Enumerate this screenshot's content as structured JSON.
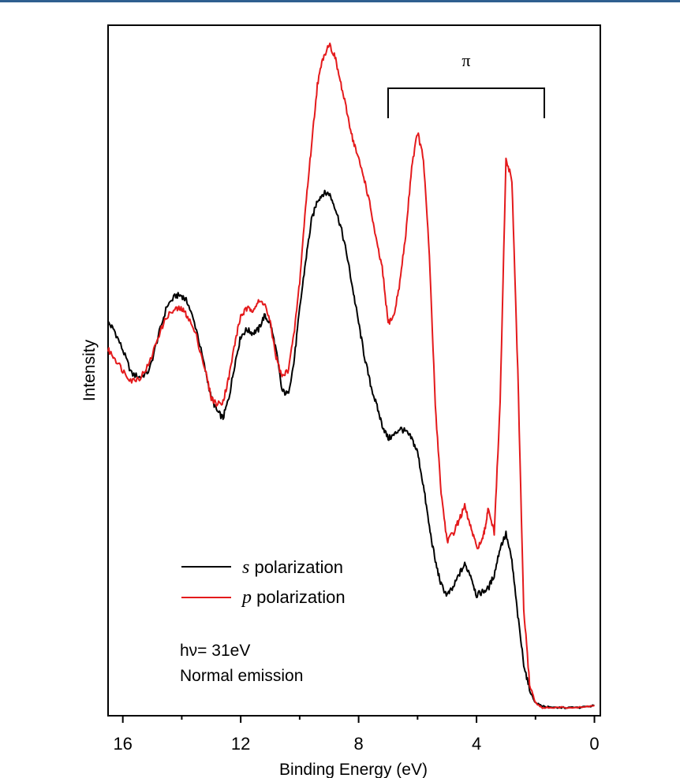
{
  "chart_data": {
    "type": "line",
    "title": "",
    "xlabel": "Binding Energy (eV)",
    "ylabel": "Intensity",
    "xlim": [
      16.5,
      -0.2
    ],
    "ylim": [
      0,
      100
    ],
    "x_reversed": true,
    "x_ticks": [
      16,
      12,
      8,
      4,
      0
    ],
    "x_tick_labels": [
      "16",
      "12",
      "8",
      "4",
      "0"
    ],
    "y_ticks_labeled": false,
    "grid": false,
    "legend_placement": "bottom-left",
    "series": [
      {
        "name_italic": "s",
        "name_rest": " polarization",
        "color": "#000000",
        "x": [
          16.5,
          16.3,
          16.0,
          15.7,
          15.4,
          15.1,
          14.8,
          14.5,
          14.2,
          14.0,
          13.8,
          13.5,
          13.2,
          13.0,
          12.8,
          12.6,
          12.4,
          12.2,
          12.0,
          11.8,
          11.6,
          11.4,
          11.2,
          11.0,
          10.8,
          10.6,
          10.4,
          10.2,
          10.0,
          9.8,
          9.6,
          9.4,
          9.2,
          9.0,
          8.8,
          8.6,
          8.4,
          8.2,
          8.0,
          7.8,
          7.6,
          7.4,
          7.2,
          7.0,
          6.8,
          6.6,
          6.4,
          6.2,
          6.0,
          5.8,
          5.6,
          5.4,
          5.2,
          5.0,
          4.8,
          4.6,
          4.4,
          4.2,
          4.0,
          3.8,
          3.6,
          3.4,
          3.2,
          3.0,
          2.8,
          2.6,
          2.4,
          2.2,
          2.0,
          1.8,
          1.5,
          1.0,
          0.5,
          0.0
        ],
        "y": [
          57,
          56,
          53,
          49.5,
          49,
          50,
          55,
          59.5,
          61,
          61,
          60,
          56,
          50,
          46,
          44,
          43,
          46,
          51,
          55,
          56,
          55.5,
          56,
          58,
          57,
          53,
          47,
          46.5,
          51,
          59,
          66,
          72,
          75,
          76,
          76,
          74,
          71,
          67,
          62,
          57,
          52,
          48,
          45,
          42,
          40,
          40.5,
          41.5,
          41,
          40,
          38,
          33,
          27,
          22,
          18.5,
          17,
          18,
          20,
          21.5,
          20,
          17,
          17.5,
          18,
          20,
          24,
          26,
          22,
          14,
          7,
          3,
          1.2,
          0.8,
          0.5,
          0.5,
          0.5,
          0.8
        ]
      },
      {
        "name_italic": "p",
        "name_rest": " polarization",
        "color": "#e41a1c",
        "x": [
          16.5,
          16.3,
          16.0,
          15.7,
          15.4,
          15.1,
          14.8,
          14.5,
          14.2,
          14.0,
          13.8,
          13.5,
          13.2,
          13.0,
          12.8,
          12.6,
          12.4,
          12.2,
          12.0,
          11.8,
          11.6,
          11.4,
          11.2,
          11.0,
          10.8,
          10.6,
          10.4,
          10.2,
          10.0,
          9.8,
          9.6,
          9.4,
          9.2,
          9.0,
          8.8,
          8.6,
          8.4,
          8.2,
          8.0,
          7.8,
          7.6,
          7.4,
          7.2,
          7.0,
          6.8,
          6.6,
          6.4,
          6.2,
          6.0,
          5.8,
          5.6,
          5.4,
          5.2,
          5.0,
          4.8,
          4.6,
          4.4,
          4.2,
          4.0,
          3.8,
          3.7,
          3.6,
          3.4,
          3.2,
          3.0,
          2.8,
          2.6,
          2.4,
          2.2,
          2.0,
          1.8,
          1.5,
          1.0,
          0.5,
          0.0
        ],
        "y": [
          53,
          52,
          50,
          48.5,
          49,
          51,
          55,
          58,
          59,
          59,
          58,
          55,
          50,
          46,
          45,
          45.5,
          49,
          54,
          58,
          59,
          59,
          60,
          60,
          57,
          52,
          49,
          50,
          55,
          63,
          74,
          83,
          92,
          96,
          98,
          96,
          92,
          88,
          84,
          81,
          78,
          74,
          69,
          65,
          57,
          58,
          63,
          70,
          80,
          85,
          81,
          67,
          45,
          32,
          25,
          26,
          28,
          30,
          27,
          24,
          25,
          27,
          30,
          26,
          45,
          81,
          78,
          50,
          15,
          4,
          1.2,
          0.5,
          0.5,
          0.5,
          0.5,
          0.8
        ]
      }
    ],
    "annotations": {
      "bracket_label": "π",
      "bracket_from_x": 7.0,
      "bracket_to_x": 1.7,
      "note_line1": "hν= 31eV",
      "note_line2": "Normal emission"
    }
  }
}
